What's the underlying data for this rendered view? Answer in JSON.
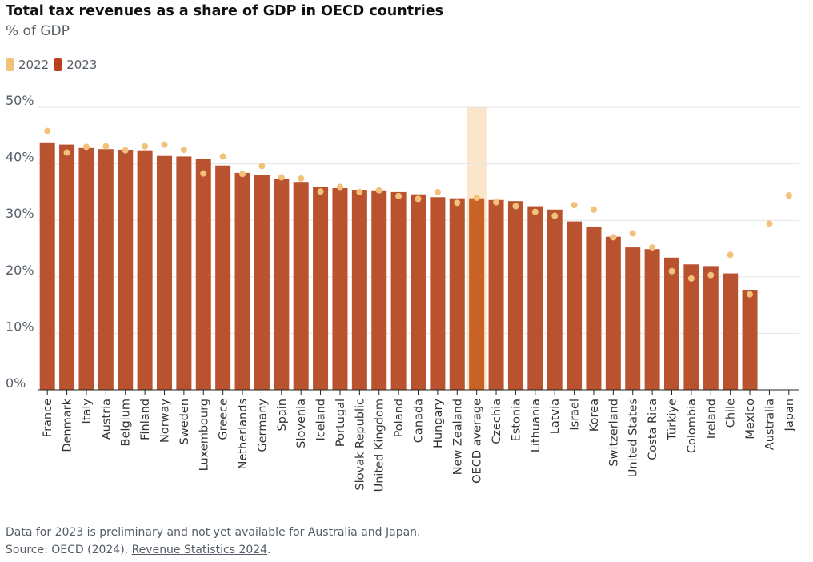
{
  "header": {
    "title": "Total tax revenues as a share of GDP in OECD countries",
    "subtitle": "% of GDP"
  },
  "legend": [
    {
      "label": "2022",
      "color": "#f3c27a"
    },
    {
      "label": "2023",
      "color": "#b8401b"
    }
  ],
  "colors": {
    "bar_2023": "#b9522e",
    "dot_2022": "#f3c27a",
    "highlight_band": "#fbe6cc",
    "highlight_bar": "#c96325",
    "grid": "#e5e5e5"
  },
  "chart_data": {
    "type": "bar",
    "title": "Total tax revenues as a share of GDP in OECD countries",
    "ylabel": "% of GDP",
    "xlabel": "",
    "ylim": [
      0,
      50
    ],
    "yticks": [
      0,
      10,
      20,
      30,
      40,
      50
    ],
    "ytick_labels": [
      "0%",
      "10%",
      "20%",
      "30%",
      "40%",
      "50%"
    ],
    "grid": true,
    "legend_position": "top-left",
    "highlight_category": "OECD average",
    "categories": [
      "France",
      "Denmark",
      "Italy",
      "Austria",
      "Belgium",
      "Finland",
      "Norway",
      "Sweden",
      "Luxembourg",
      "Greece",
      "Netherlands",
      "Germany",
      "Spain",
      "Slovenia",
      "Iceland",
      "Portugal",
      "Slovak Republic",
      "United Kingdom",
      "Poland",
      "Canada",
      "Hungary",
      "New Zealand",
      "OECD average",
      "Czechia",
      "Estonia",
      "Lithuania",
      "Latvia",
      "Israel",
      "Korea",
      "Switzerland",
      "United States",
      "Costa Rica",
      "Türkiye",
      "Colombia",
      "Ireland",
      "Chile",
      "Mexico",
      "Australia",
      "Japan"
    ],
    "series": [
      {
        "name": "2022",
        "type": "dot",
        "values": [
          45.8,
          42.0,
          43.0,
          43.1,
          42.4,
          43.1,
          43.4,
          42.5,
          38.3,
          41.3,
          38.2,
          39.6,
          37.6,
          37.4,
          35.1,
          35.9,
          35.0,
          35.3,
          34.3,
          33.8,
          35.0,
          33.1,
          34.0,
          33.2,
          32.5,
          31.5,
          30.8,
          32.7,
          31.9,
          27.0,
          27.7,
          25.2,
          21.0,
          19.7,
          20.3,
          23.9,
          16.9,
          29.4,
          34.4
        ]
      },
      {
        "name": "2023",
        "type": "bar",
        "values": [
          43.8,
          43.4,
          42.8,
          42.6,
          42.5,
          42.4,
          41.4,
          41.3,
          40.9,
          39.7,
          38.4,
          38.1,
          37.3,
          36.8,
          35.9,
          35.7,
          35.4,
          35.3,
          35.0,
          34.6,
          34.1,
          33.9,
          33.9,
          33.6,
          33.4,
          32.5,
          31.9,
          29.8,
          28.9,
          27.1,
          25.2,
          24.9,
          23.4,
          22.2,
          21.9,
          20.6,
          17.7,
          null,
          null
        ]
      }
    ]
  },
  "footnote": {
    "line1": "Data for 2023 is preliminary and not yet available for Australia and Japan.",
    "source_prefix": "Source: OECD (2024), ",
    "source_link": "Revenue Statistics 2024",
    "source_suffix": "."
  }
}
